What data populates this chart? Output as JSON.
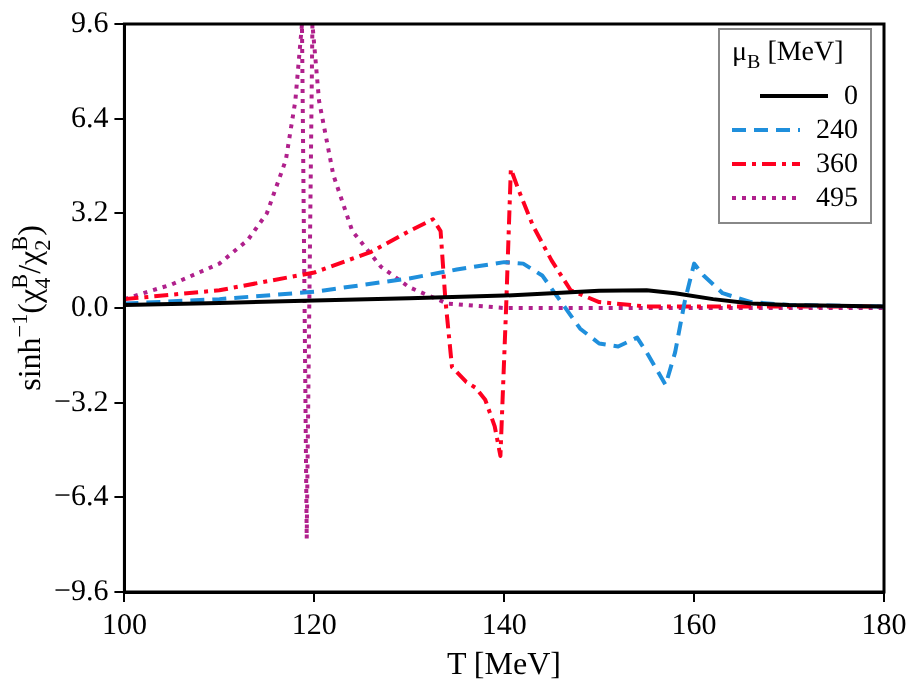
{
  "chart_data": {
    "type": "line",
    "xlabel": "T [MeV]",
    "ylabel": "sinh$^{−1}$(χ$_{4}$$^{B}$/χ$_{2}$$^{B}$)",
    "legend_title": "μ$_{B}$ [MeV]",
    "legend": "top right",
    "grid": false,
    "marker": "none",
    "xlim": [
      100,
      180
    ],
    "xticks": [
      100,
      120,
      140,
      160,
      180
    ],
    "ylim": [
      -9.6,
      9.6
    ],
    "yticks": [
      {
        "value": -9.6,
        "label": "−9.6"
      },
      {
        "value": -6.4,
        "label": "−6.4"
      },
      {
        "value": -3.2,
        "label": "−3.2"
      },
      {
        "value": 0,
        "label": "0.0"
      },
      3.2,
      6.4,
      9.6
    ],
    "series": [
      {
        "name": "0",
        "color": "#000000",
        "line_style": "solid",
        "x": [
          100,
          110,
          120,
          130,
          140,
          145,
          150,
          155,
          158,
          162,
          166,
          170,
          180
        ],
        "values": [
          0.1,
          0.17,
          0.25,
          0.33,
          0.42,
          0.5,
          0.58,
          0.6,
          0.5,
          0.3,
          0.15,
          0.1,
          0.05
        ]
      },
      {
        "name": "240",
        "color": "#1f8fdc",
        "line_style": "dashed",
        "x": [
          100,
          110,
          120,
          130,
          135,
          140,
          142,
          144,
          146,
          148,
          150,
          152,
          154,
          155,
          157,
          158,
          159,
          160,
          161,
          163,
          166,
          170,
          180
        ],
        "values": [
          0.15,
          0.3,
          0.55,
          1.0,
          1.3,
          1.55,
          1.5,
          1.1,
          0.2,
          -0.7,
          -1.2,
          -1.3,
          -1.0,
          -1.5,
          -2.6,
          -1.5,
          0.2,
          1.5,
          1.1,
          0.5,
          0.2,
          0.1,
          0.05
        ]
      },
      {
        "name": "360",
        "color": "#ff0020",
        "line_style": "dashdot",
        "x": [
          100,
          110,
          120,
          126,
          130,
          132.5,
          133.3,
          133.8,
          134.5,
          136,
          137,
          138,
          139,
          139.6,
          140.2,
          140.7,
          141.5,
          143,
          145,
          147,
          150,
          155,
          160,
          180
        ],
        "values": [
          0.3,
          0.6,
          1.2,
          1.9,
          2.6,
          3.0,
          2.6,
          0.3,
          -2.0,
          -2.5,
          -2.7,
          -3.1,
          -4.0,
          -5.0,
          0.0,
          4.7,
          4.0,
          2.8,
          1.6,
          0.6,
          0.2,
          0.05,
          0.05,
          0.05
        ]
      },
      {
        "name": "495",
        "color": "#b0208c",
        "line_style": "dotted",
        "x": [
          100,
          105,
          110,
          113,
          115,
          117,
          118,
          118.7,
          119.2,
          119.8,
          120.5,
          122,
          124,
          127,
          130,
          134,
          140,
          150,
          180
        ],
        "values": [
          0.3,
          0.8,
          1.5,
          2.3,
          3.2,
          5.0,
          7.0,
          9.6,
          -7.8,
          9.6,
          7.0,
          4.5,
          2.6,
          1.4,
          0.7,
          0.15,
          0.0,
          0.0,
          0.0
        ]
      }
    ]
  }
}
